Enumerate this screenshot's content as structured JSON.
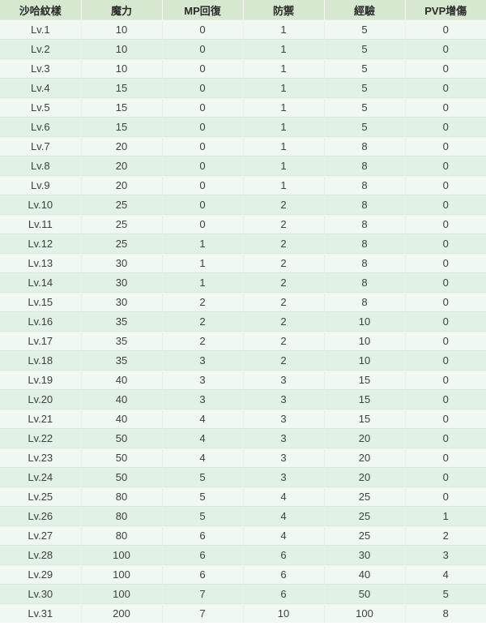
{
  "table": {
    "headers": [
      "沙哈紋樣",
      "魔力",
      "MP回復",
      "防禦",
      "經驗",
      "PVP增傷"
    ],
    "rows": [
      {
        "level": "Lv.1",
        "values": [
          "10",
          "0",
          "1",
          "5",
          "0"
        ]
      },
      {
        "level": "Lv.2",
        "values": [
          "10",
          "0",
          "1",
          "5",
          "0"
        ]
      },
      {
        "level": "Lv.3",
        "values": [
          "10",
          "0",
          "1",
          "5",
          "0"
        ]
      },
      {
        "level": "Lv.4",
        "values": [
          "15",
          "0",
          "1",
          "5",
          "0"
        ]
      },
      {
        "level": "Lv.5",
        "values": [
          "15",
          "0",
          "1",
          "5",
          "0"
        ]
      },
      {
        "level": "Lv.6",
        "values": [
          "15",
          "0",
          "1",
          "5",
          "0"
        ]
      },
      {
        "level": "Lv.7",
        "values": [
          "20",
          "0",
          "1",
          "8",
          "0"
        ]
      },
      {
        "level": "Lv.8",
        "values": [
          "20",
          "0",
          "1",
          "8",
          "0"
        ]
      },
      {
        "level": "Lv.9",
        "values": [
          "20",
          "0",
          "1",
          "8",
          "0"
        ]
      },
      {
        "level": "Lv.10",
        "values": [
          "25",
          "0",
          "2",
          "8",
          "0"
        ]
      },
      {
        "level": "Lv.11",
        "values": [
          "25",
          "0",
          "2",
          "8",
          "0"
        ]
      },
      {
        "level": "Lv.12",
        "values": [
          "25",
          "1",
          "2",
          "8",
          "0"
        ]
      },
      {
        "level": "Lv.13",
        "values": [
          "30",
          "1",
          "2",
          "8",
          "0"
        ]
      },
      {
        "level": "Lv.14",
        "values": [
          "30",
          "1",
          "2",
          "8",
          "0"
        ]
      },
      {
        "level": "Lv.15",
        "values": [
          "30",
          "2",
          "2",
          "8",
          "0"
        ]
      },
      {
        "level": "Lv.16",
        "values": [
          "35",
          "2",
          "2",
          "10",
          "0"
        ]
      },
      {
        "level": "Lv.17",
        "values": [
          "35",
          "2",
          "2",
          "10",
          "0"
        ]
      },
      {
        "level": "Lv.18",
        "values": [
          "35",
          "3",
          "2",
          "10",
          "0"
        ]
      },
      {
        "level": "Lv.19",
        "values": [
          "40",
          "3",
          "3",
          "15",
          "0"
        ]
      },
      {
        "level": "Lv.20",
        "values": [
          "40",
          "3",
          "3",
          "15",
          "0"
        ]
      },
      {
        "level": "Lv.21",
        "values": [
          "40",
          "4",
          "3",
          "15",
          "0"
        ]
      },
      {
        "level": "Lv.22",
        "values": [
          "50",
          "4",
          "3",
          "20",
          "0"
        ]
      },
      {
        "level": "Lv.23",
        "values": [
          "50",
          "4",
          "3",
          "20",
          "0"
        ]
      },
      {
        "level": "Lv.24",
        "values": [
          "50",
          "5",
          "3",
          "20",
          "0"
        ]
      },
      {
        "level": "Lv.25",
        "values": [
          "80",
          "5",
          "4",
          "25",
          "0"
        ]
      },
      {
        "level": "Lv.26",
        "values": [
          "80",
          "5",
          "4",
          "25",
          "1"
        ]
      },
      {
        "level": "Lv.27",
        "values": [
          "80",
          "6",
          "4",
          "25",
          "2"
        ]
      },
      {
        "level": "Lv.28",
        "values": [
          "100",
          "6",
          "6",
          "30",
          "3"
        ]
      },
      {
        "level": "Lv.29",
        "values": [
          "100",
          "6",
          "6",
          "40",
          "4"
        ]
      },
      {
        "level": "Lv.30",
        "values": [
          "100",
          "7",
          "6",
          "50",
          "5"
        ]
      },
      {
        "level": "Lv.31",
        "values": [
          "200",
          "7",
          "10",
          "100",
          "8"
        ]
      }
    ]
  },
  "colors": {
    "header_bg": "#d6e8d0",
    "row_odd_bg": "#eff8f1",
    "row_even_bg": "#e1f1e6",
    "border": "#dce5dd",
    "text": "#3f3f3f"
  }
}
